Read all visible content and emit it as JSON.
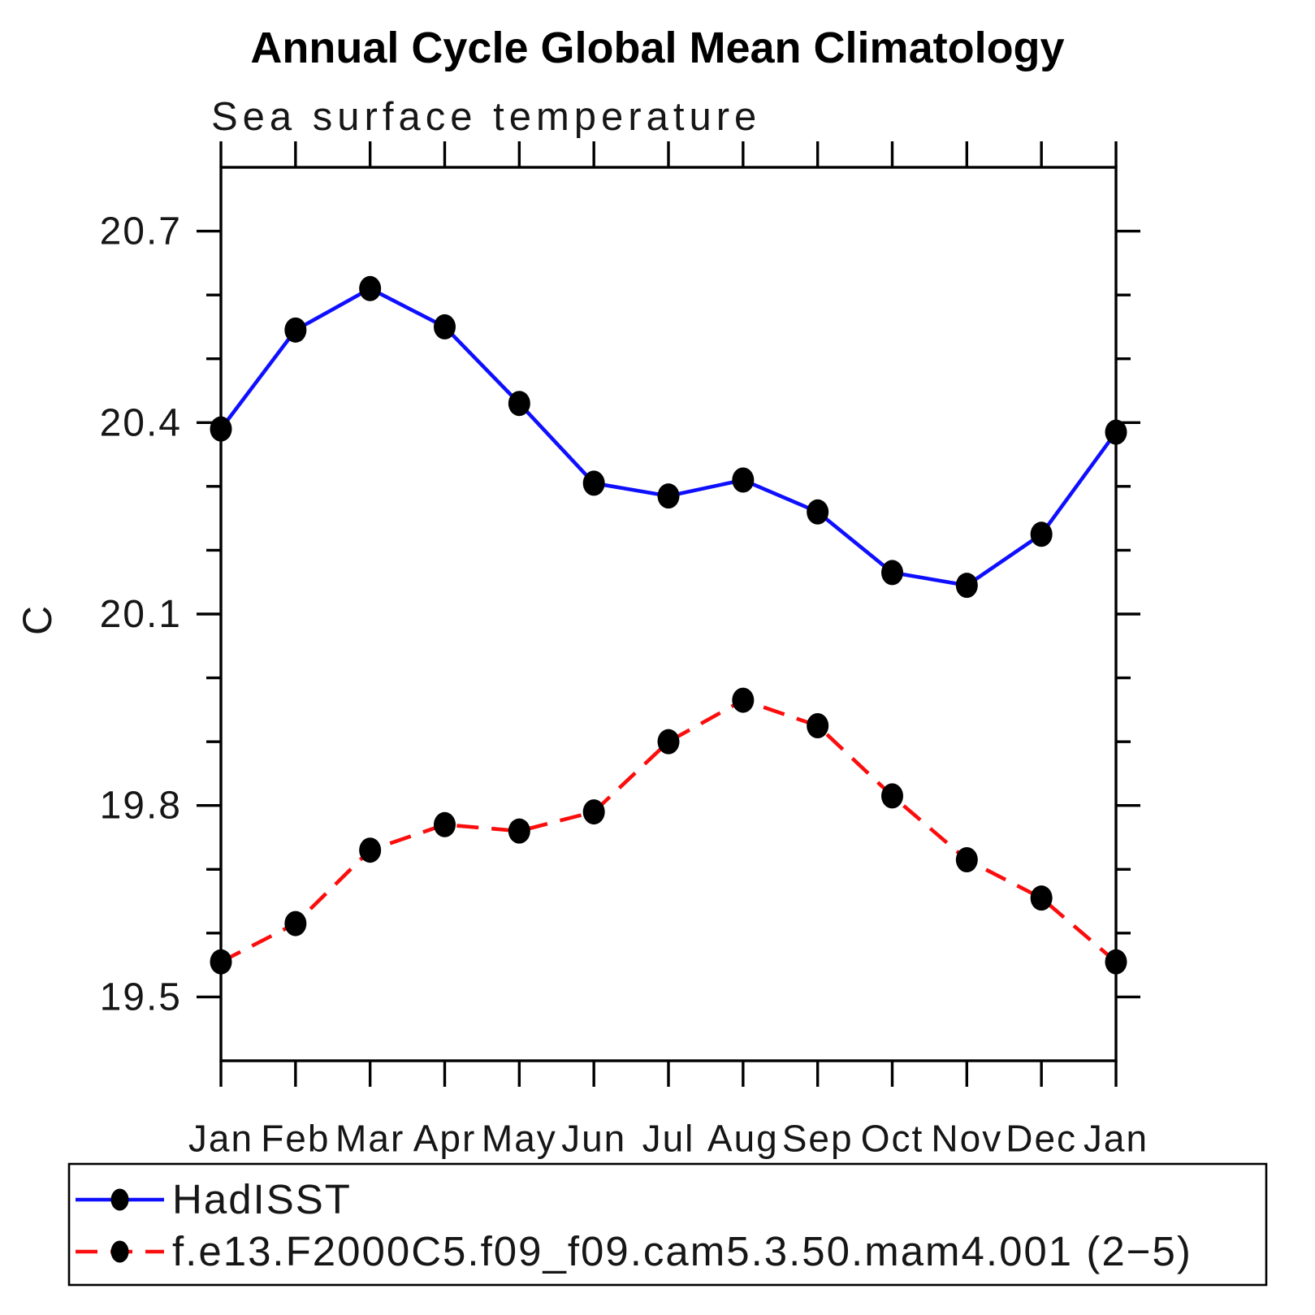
{
  "chart_data": {
    "type": "line",
    "title": "Annual Cycle Global Mean Climatology",
    "subtitle": "Sea surface temperature",
    "ylabel": "C",
    "categories": [
      "Jan",
      "Feb",
      "Mar",
      "Apr",
      "May",
      "Jun",
      "Jul",
      "Aug",
      "Sep",
      "Oct",
      "Nov",
      "Dec",
      "Jan"
    ],
    "series": [
      {
        "name": "HadISST",
        "color": "#0f0fff",
        "line_style": "solid",
        "values": [
          20.39,
          20.545,
          20.61,
          20.55,
          20.43,
          20.305,
          20.285,
          20.31,
          20.26,
          20.165,
          20.145,
          20.225,
          20.385
        ]
      },
      {
        "name": "f.e13.F2000C5.f09_f09.cam5.3.50.mam4.001 (2−5)",
        "color": "#fb0d0d",
        "line_style": "dashed",
        "values": [
          19.555,
          19.615,
          19.73,
          19.77,
          19.76,
          19.79,
          19.9,
          19.965,
          19.925,
          19.815,
          19.715,
          19.655,
          19.555
        ]
      }
    ],
    "marker": {
      "shape": "circle",
      "color": "#000000"
    },
    "ylim": [
      19.4,
      20.8
    ],
    "yticks_major": [
      19.5,
      19.8,
      20.1,
      20.4,
      20.7
    ],
    "ytick_minor_step": 0.1,
    "grid": false,
    "legend_position": "bottom-box"
  }
}
